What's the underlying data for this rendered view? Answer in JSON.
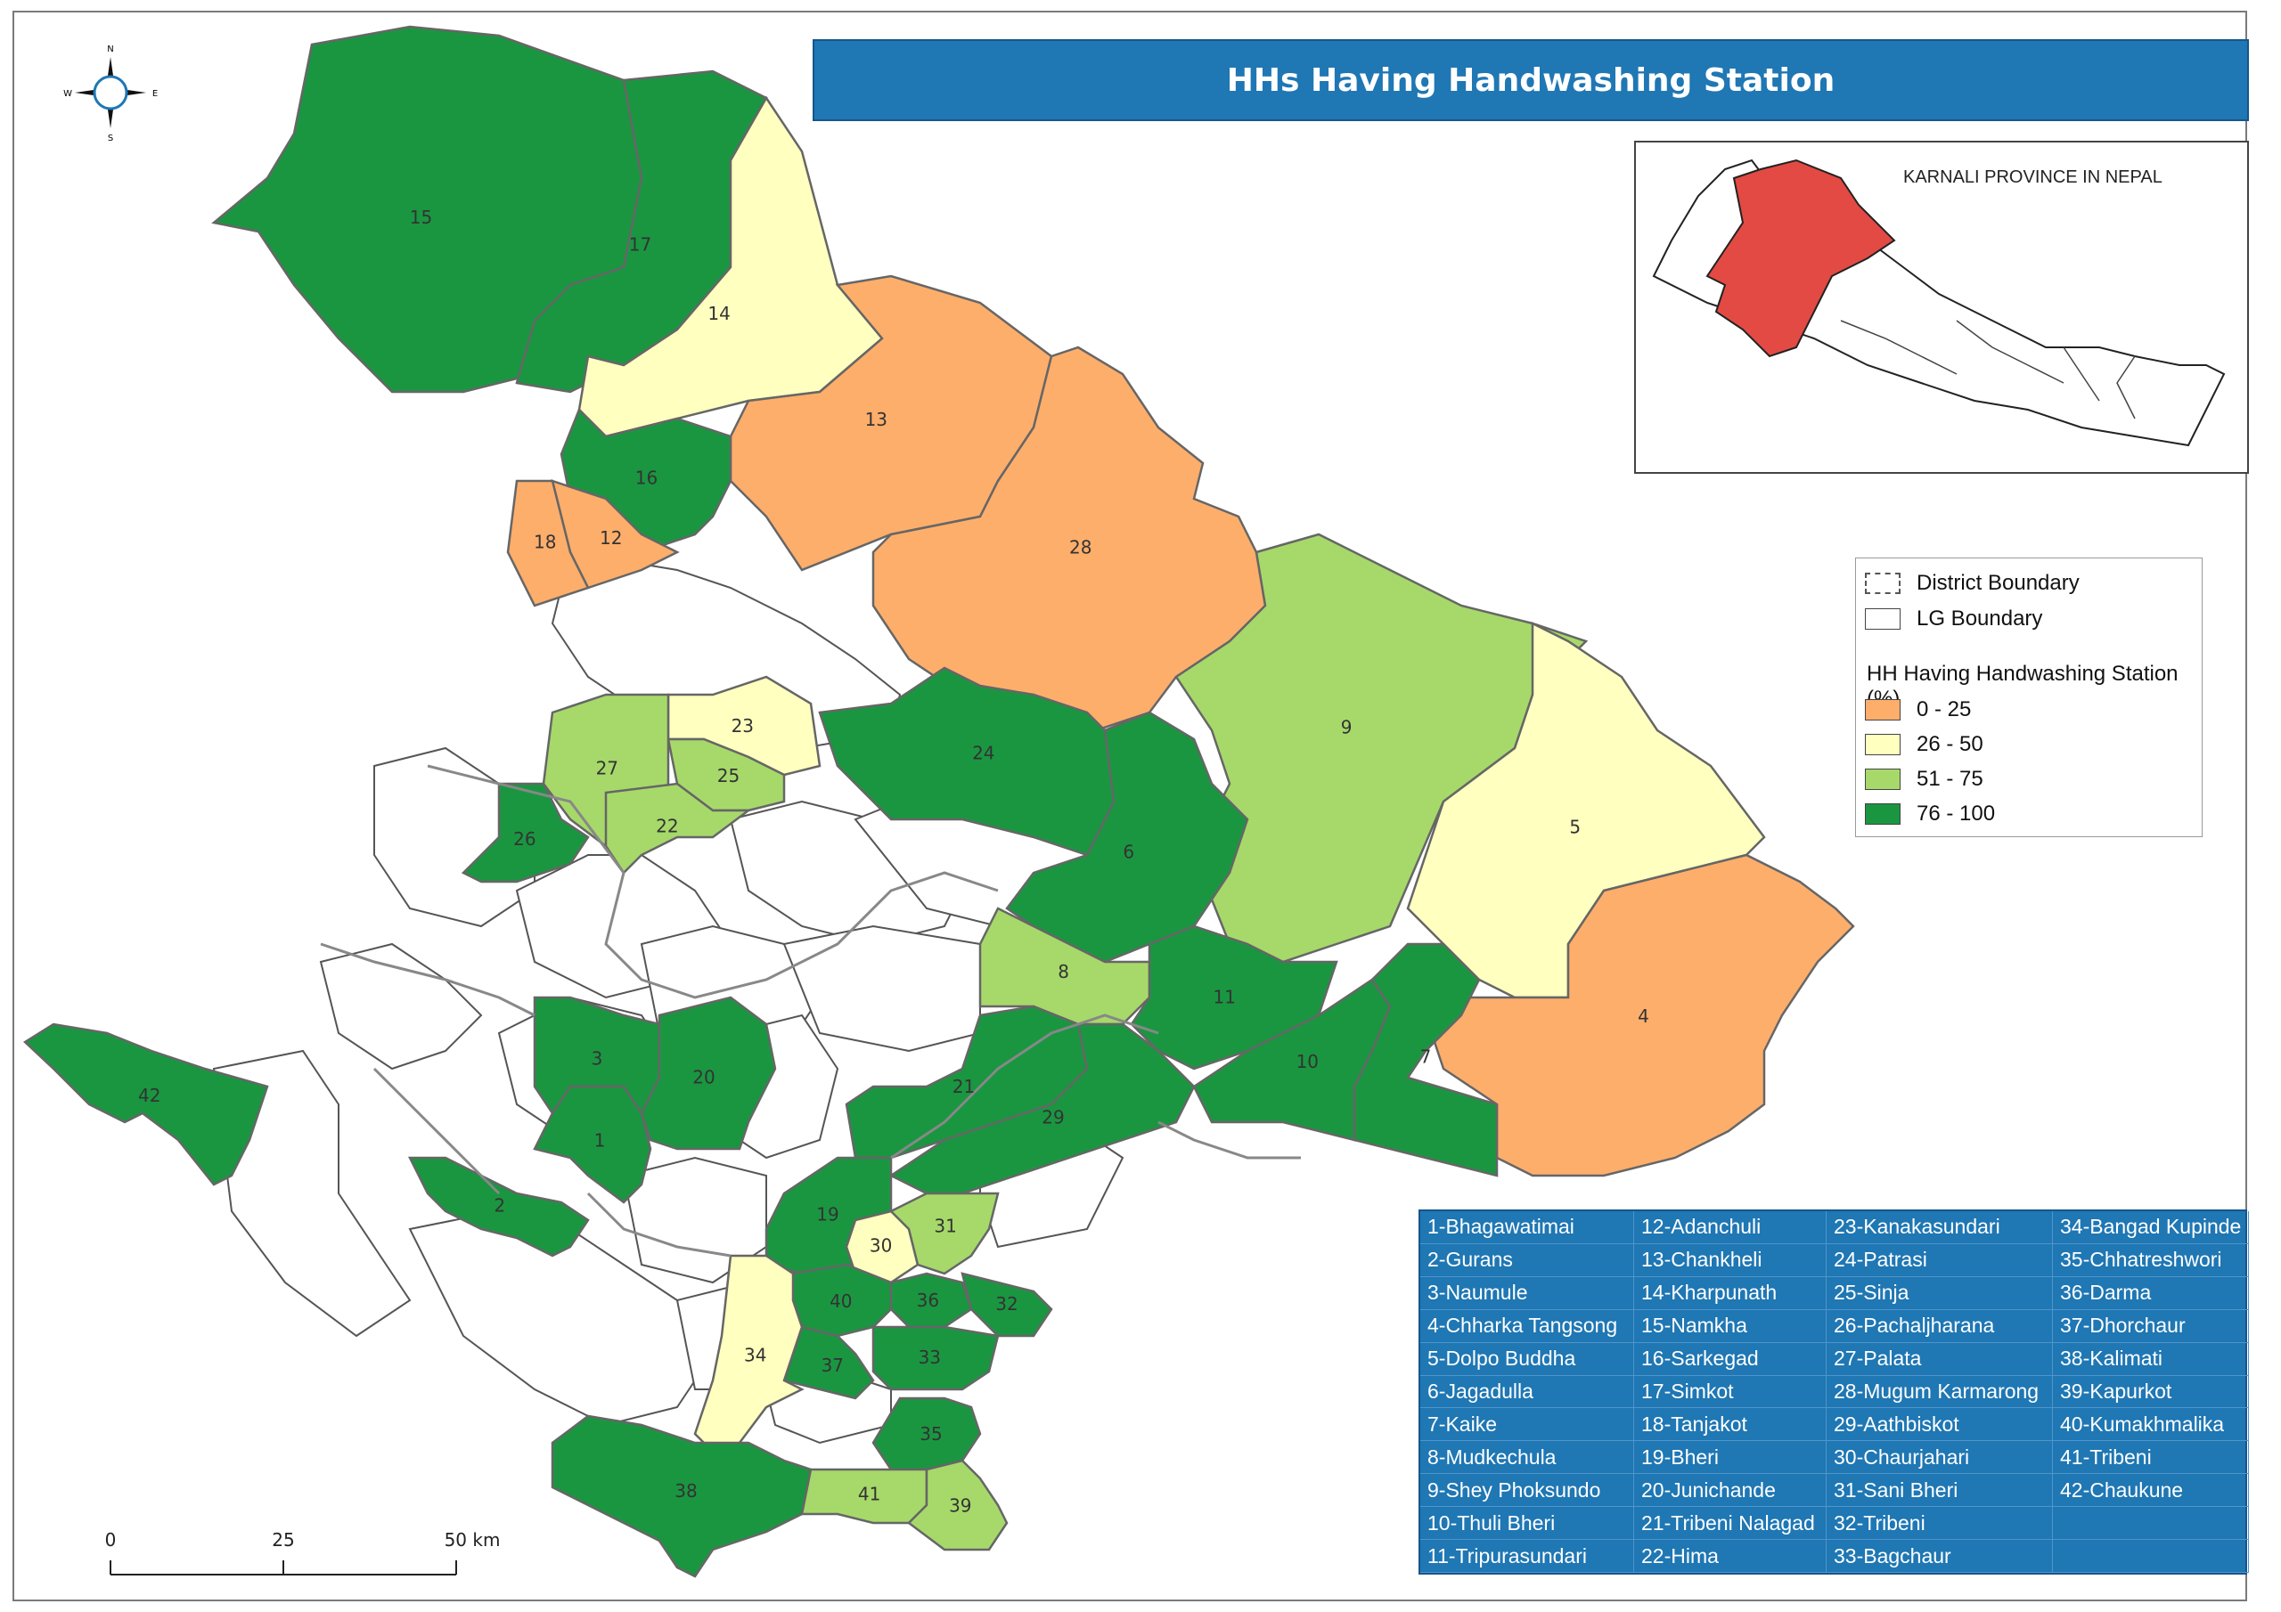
{
  "title": "HHs Having Handwashing Station",
  "inset": {
    "title": "KARNALI PROVINCE IN NEPAL"
  },
  "compass": {
    "n": "N",
    "s": "S",
    "e": "E",
    "w": "W"
  },
  "legend": {
    "district_boundary": "District Boundary",
    "lg_boundary": "LG Boundary",
    "heading": "HH Having Handwashing Station (%)",
    "classes": [
      {
        "label": "0 - 25",
        "color": "#fdae6b"
      },
      {
        "label": "26 - 50",
        "color": "#ffffbf"
      },
      {
        "label": "51 - 75",
        "color": "#a6d96a"
      },
      {
        "label": "76 - 100",
        "color": "#1a9641"
      }
    ]
  },
  "scale": {
    "t0": "0",
    "t1": "25",
    "t2": "50 km"
  },
  "local_governments": [
    "1-Bhagawatimai",
    "2-Gurans",
    "3-Naumule",
    "4-Chharka Tangsong",
    "5-Dolpo Buddha",
    "6-Jagadulla",
    "7-Kaike",
    "8-Mudkechula",
    "9-Shey Phoksundo",
    "10-Thuli Bheri",
    "11-Tripurasundari",
    "12-Adanchuli",
    "13-Chankheli",
    "14-Kharpunath",
    "15-Namkha",
    "16-Sarkegad",
    "17-Simkot",
    "18-Tanjakot",
    "19-Bheri",
    "20-Junichande",
    "21-Tribeni Nalagad",
    "22-Hima",
    "23-Kanakasundari",
    "24-Patrasi",
    "25-Sinja",
    "26-Pachaljharana",
    "27-Palata",
    "28-Mugum Karmarong",
    "29-Aathbiskot",
    "30-Chaurjahari",
    "31-Sani Bheri",
    "32-Tribeni",
    "33-Bagchaur",
    "34-Bangad Kupinde",
    "35-Chhatreshwori",
    "36-Darma",
    "37-Dhorchaur",
    "38-Kalimati",
    "39-Kapurkot",
    "40-Kumakhmalika",
    "41-Tribeni",
    "42-Chaukune"
  ],
  "regions": [
    {
      "label": "15",
      "class": 3
    },
    {
      "label": "17",
      "class": 3
    },
    {
      "label": "14",
      "class": 1
    },
    {
      "label": "13",
      "class": 0
    },
    {
      "label": "16",
      "class": 3
    },
    {
      "label": "12",
      "class": 0
    },
    {
      "label": "18",
      "class": 0
    },
    {
      "label": "28",
      "class": 0
    },
    {
      "label": "9",
      "class": 2
    },
    {
      "label": "5",
      "class": 1
    },
    {
      "label": "4",
      "class": 0
    },
    {
      "label": "6",
      "class": 3
    },
    {
      "label": "24",
      "class": 3
    },
    {
      "label": "23",
      "class": 1
    },
    {
      "label": "25",
      "class": 2
    },
    {
      "label": "27",
      "class": 2
    },
    {
      "label": "22",
      "class": 2
    },
    {
      "label": "26",
      "class": 3
    },
    {
      "label": "8",
      "class": 2
    },
    {
      "label": "11",
      "class": 3
    },
    {
      "label": "10",
      "class": 3
    },
    {
      "label": "7",
      "class": 3
    },
    {
      "label": "21",
      "class": 3
    },
    {
      "label": "29",
      "class": 3
    },
    {
      "label": "3",
      "class": 3
    },
    {
      "label": "20",
      "class": 3
    },
    {
      "label": "1",
      "class": 3
    },
    {
      "label": "2",
      "class": 3
    },
    {
      "label": "42",
      "class": 3
    },
    {
      "label": "19",
      "class": 3
    },
    {
      "label": "30",
      "class": 1
    },
    {
      "label": "31",
      "class": 2
    },
    {
      "label": "40",
      "class": 3
    },
    {
      "label": "36",
      "class": 3
    },
    {
      "label": "32",
      "class": 3
    },
    {
      "label": "37",
      "class": 3
    },
    {
      "label": "33",
      "class": 3
    },
    {
      "label": "34",
      "class": 1
    },
    {
      "label": "35",
      "class": 3
    },
    {
      "label": "38",
      "class": 3
    },
    {
      "label": "41",
      "class": 2
    },
    {
      "label": "39",
      "class": 2
    }
  ]
}
